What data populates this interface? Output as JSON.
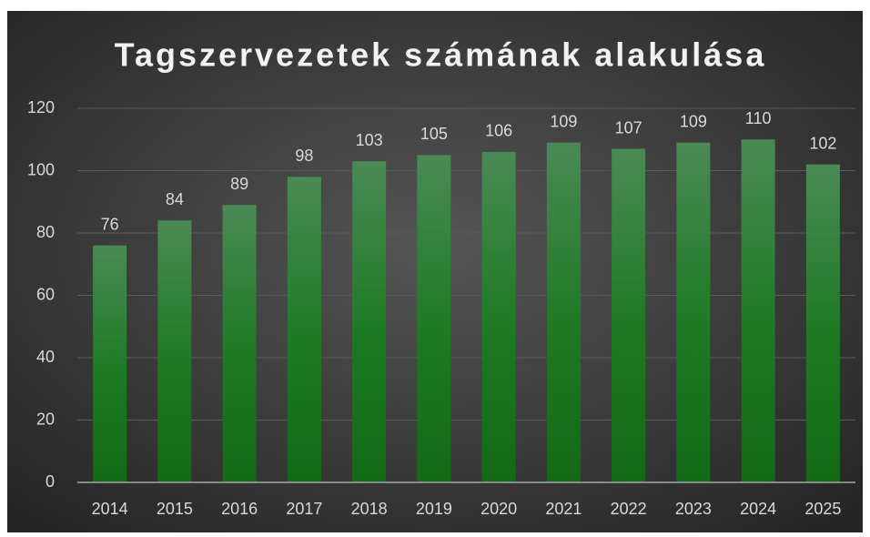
{
  "chart_data": {
    "type": "bar",
    "title": "Tagszervezetek számának alakulása",
    "categories": [
      "2014",
      "2015",
      "2016",
      "2017",
      "2018",
      "2019",
      "2020",
      "2021",
      "2022",
      "2023",
      "2024",
      "2025"
    ],
    "values": [
      76,
      84,
      89,
      98,
      103,
      105,
      106,
      109,
      107,
      109,
      110,
      102
    ],
    "color": "#1a7a1a",
    "ylim": [
      0,
      120
    ],
    "yticks": [
      0,
      20,
      40,
      60,
      80,
      100,
      120
    ],
    "grid": true
  }
}
